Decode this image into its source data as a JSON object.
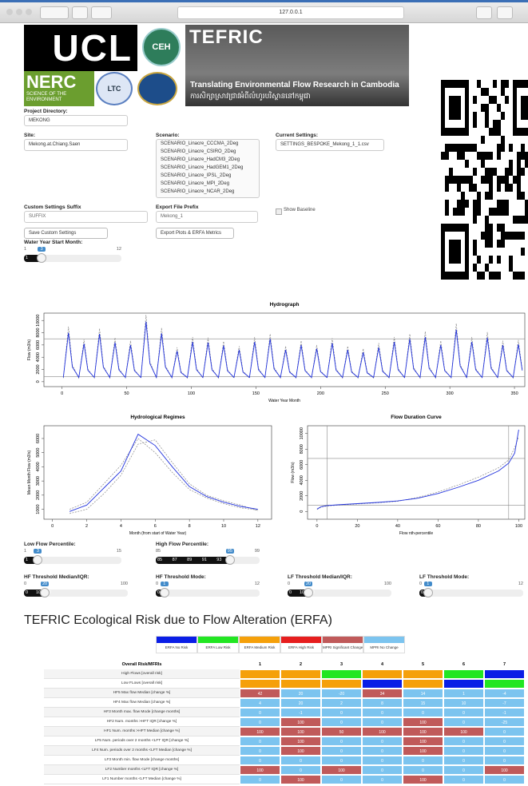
{
  "browser": {
    "url": "127.0.0.1"
  },
  "header": {
    "ucl": "UCL",
    "ceh": "CEH",
    "nerc": "NERC",
    "nerc_tagline": "SCIENCE OF THE ENVIRONMENT",
    "ltc": "LTC",
    "tefric": "TEFRIC",
    "tefric_tagline": "Translating Environmental Flow Research in Cambodia",
    "tefric_khmer": "ការសិក្សាស្រាវជ្រាវអំពីលំហូរបរិស្ថាននៅកម្ពុជា"
  },
  "form": {
    "project_label": "Project Directory:",
    "project": "MEKONG",
    "site_label": "Site:",
    "site": "Mekong.at.Chiang.Saen",
    "scenario_label": "Scenario:",
    "scenarios": [
      "SCENARIO_Linacre_CCCMA_2Deg",
      "SCENARIO_Linacre_CSIRO_2Deg",
      "SCENARIO_Linacre_HadCM3_2Deg",
      "SCENARIO_Linacre_HadGEM1_2Deg",
      "SCENARIO_Linacre_IPSL_2Deg",
      "SCENARIO_Linacre_MPI_2Deg",
      "SCENARIO_Linacre_NCAR_2Deg"
    ],
    "settings_label": "Current Settings:",
    "settings": "SETTINGS_BESPOKE_Mekong_1_1.csv",
    "suffix_label": "Custom Settings Suffix",
    "suffix": "SUFFIX",
    "prefix_label": "Export File Prefix",
    "prefix": "Mekong_1",
    "baseline": "Show Baseline",
    "save_button": "Save Custom Settings",
    "export_button": "Export Plots & ERFA Metrics"
  },
  "sliders": [
    {
      "label": "Water Year Start Month:",
      "min": 1,
      "max": 12,
      "value": 3,
      "grid": [
        1,
        3
      ]
    },
    {
      "label": "Low Flow Percentile:",
      "min": 1,
      "max": 15,
      "value": 3,
      "grid": [
        1,
        3
      ]
    },
    {
      "label": "High Flow Percentile:",
      "min": 85,
      "max": 99,
      "value": 95,
      "grid": [
        85,
        87,
        89,
        91,
        93
      ]
    },
    {
      "label": "HF Threshold Median/IQR:",
      "min": 0,
      "max": 100,
      "value": 20,
      "grid": [
        0,
        10,
        20
      ]
    },
    {
      "label": "HF Threshold Mode:",
      "min": 0,
      "max": 12,
      "value": 1,
      "grid": [
        0
      ]
    },
    {
      "label": "LF Threshold Median/IQR:",
      "min": 0,
      "max": 100,
      "value": 20,
      "grid": [
        0,
        10,
        20
      ]
    },
    {
      "label": "LF Threshold Mode:",
      "min": 0,
      "max": 12,
      "value": 1,
      "grid": [
        0
      ]
    }
  ],
  "chart_data": [
    {
      "type": "line",
      "title": "Hydrograph",
      "x_label": "Water Year Month",
      "y_label": "Flow (m3/s)",
      "xlim": [
        -14,
        358
      ],
      "ylim": [
        -800,
        11200
      ],
      "xticks": [
        0,
        50,
        100,
        150,
        200,
        250,
        300,
        350
      ],
      "yticks": [
        0,
        2000,
        4000,
        6000,
        8000,
        10000
      ],
      "hlines": [
        7000,
        800
      ],
      "x": [
        1,
        5,
        8,
        13,
        17,
        20,
        25,
        29,
        32,
        37,
        41,
        44,
        49,
        53,
        56,
        61,
        65,
        68,
        73,
        77,
        80,
        85,
        89,
        92,
        97,
        101,
        104,
        109,
        113,
        116,
        121,
        125,
        128,
        133,
        137,
        140,
        145,
        149,
        152,
        157,
        161,
        164,
        169,
        173,
        176,
        181,
        185,
        188,
        193,
        197,
        200,
        205,
        209,
        212,
        217,
        221,
        224,
        229,
        233,
        236,
        241,
        245,
        248,
        253,
        257,
        260,
        265,
        269,
        272,
        277,
        281,
        284,
        289,
        293,
        296,
        301,
        305,
        308,
        313,
        317,
        320,
        325,
        329,
        332,
        337,
        341,
        344,
        349,
        353,
        356
      ],
      "series": [
        {
          "color": "#888888",
          "dash": true,
          "values": [
            600,
            9000,
            2700,
            600,
            6900,
            2070,
            600,
            8700,
            2610,
            600,
            7200,
            2160,
            600,
            6700,
            2010,
            600,
            10900,
            3270,
            600,
            8800,
            2640,
            600,
            5600,
            1680,
            600,
            7300,
            2190,
            600,
            7200,
            2160,
            600,
            6600,
            1980,
            600,
            5800,
            1740,
            600,
            7300,
            2190,
            600,
            7800,
            2340,
            600,
            5800,
            1740,
            600,
            6700,
            2010,
            600,
            6000,
            1800,
            600,
            7100,
            2130,
            600,
            5800,
            1740,
            600,
            5400,
            1620,
            600,
            6300,
            1890,
            600,
            7300,
            2190,
            600,
            7800,
            2340,
            600,
            8200,
            2460,
            600,
            6700,
            2010,
            600,
            9500,
            2850,
            600,
            7300,
            2190,
            600,
            8100,
            2430,
            600,
            6700,
            2010,
            600,
            6800,
            2040
          ]
        },
        {
          "color": "#2233dd",
          "dash": false,
          "values": [
            700,
            8000,
            2400,
            700,
            6200,
            1860,
            700,
            7800,
            2340,
            700,
            6400,
            1920,
            700,
            6000,
            1800,
            700,
            9800,
            2940,
            700,
            7900,
            2370,
            700,
            5000,
            1500,
            700,
            6500,
            1950,
            700,
            6400,
            1920,
            700,
            5900,
            1770,
            700,
            5200,
            1560,
            700,
            6500,
            1950,
            700,
            7000,
            2100,
            700,
            5200,
            1560,
            700,
            6000,
            1800,
            700,
            5400,
            1620,
            700,
            6300,
            1890,
            700,
            5200,
            1560,
            700,
            4800,
            1440,
            700,
            5600,
            1680,
            700,
            6500,
            1950,
            700,
            7000,
            2100,
            700,
            7300,
            2190,
            700,
            6000,
            1800,
            700,
            8500,
            2550,
            700,
            6500,
            1950,
            700,
            7200,
            2160,
            700,
            6000,
            1800,
            700,
            6100,
            1830
          ]
        }
      ]
    },
    {
      "type": "line",
      "title": "Hydrological Regimes",
      "x_label": "Month (from start of Water Year)",
      "y_label": "Mean Month Flow (m3/s)",
      "xlim": [
        -0.5,
        12.8
      ],
      "ylim": [
        300,
        6900
      ],
      "xticks": [
        0,
        2,
        4,
        6,
        8,
        10,
        12
      ],
      "yticks": [
        1000,
        2000,
        3000,
        4000,
        5000,
        6000
      ],
      "x": [
        1,
        2,
        3,
        4,
        5,
        6,
        7,
        8,
        9,
        10,
        11,
        12
      ],
      "series": [
        {
          "color": "#888888",
          "dash": true,
          "values": [
            700,
            1000,
            2100,
            3400,
            5600,
            5900,
            4300,
            2800,
            2000,
            1600,
            1300,
            900
          ]
        },
        {
          "color": "#888888",
          "dash": true,
          "values": [
            1000,
            1500,
            2800,
            4100,
            6000,
            5000,
            3600,
            2400,
            1800,
            1400,
            1100,
            950
          ]
        },
        {
          "color": "#2233dd",
          "dash": false,
          "values": [
            850,
            1300,
            2500,
            3700,
            6300,
            5500,
            4000,
            2600,
            1900,
            1500,
            1200,
            1000
          ]
        }
      ]
    },
    {
      "type": "line",
      "title": "Flow Duration Curve",
      "x_label": "Flow nth-percentile",
      "y_label": "Flow (m3/s)",
      "xlim": [
        -4.7,
        103
      ],
      "ylim": [
        -1000,
        11000
      ],
      "xticks": [
        0,
        20,
        40,
        60,
        80,
        100
      ],
      "yticks": [
        0,
        2000,
        4000,
        6000,
        8000,
        10000
      ],
      "hlines": [
        6800,
        800
      ],
      "vlines": [
        5,
        95
      ],
      "x": [
        0,
        2,
        5,
        10,
        20,
        30,
        40,
        50,
        60,
        70,
        80,
        90,
        95,
        98,
        100
      ],
      "series": [
        {
          "color": "#888888",
          "dash": true,
          "values": [
            250,
            550,
            700,
            800,
            950,
            1100,
            1300,
            1800,
            2500,
            3400,
            4400,
            5600,
            6600,
            8200,
            9600
          ]
        },
        {
          "color": "#2233dd",
          "dash": false,
          "values": [
            300,
            600,
            750,
            850,
            1000,
            1150,
            1350,
            1700,
            2300,
            3100,
            4000,
            5200,
            6200,
            7500,
            10500
          ]
        }
      ]
    }
  ],
  "erfa": {
    "title": "TEFRIC Ecological Risk due to Flow Alteration (ERFA)",
    "legend": [
      {
        "label": "ERFA No Risk",
        "color": "#0a1ee6"
      },
      {
        "label": "ERFA Low Risk",
        "color": "#22e622"
      },
      {
        "label": "ERFA Medium Risk",
        "color": "#f5a00a"
      },
      {
        "label": "ERFA High Risk",
        "color": "#e61e1e"
      },
      {
        "label": "MPRI Significant Change",
        "color": "#c05a5a"
      },
      {
        "label": "MPRI No Change",
        "color": "#7cc4ef"
      }
    ],
    "header": "Overall Risk/MFRIs",
    "columns": [
      1,
      2,
      3,
      4,
      5,
      6,
      7
    ],
    "rows": [
      {
        "label": "High Flows [overall risk]",
        "levels": [
          2,
          2,
          1,
          2,
          2,
          1,
          0
        ]
      },
      {
        "label": "Low FLows [overall risk]",
        "levels": [
          2,
          2,
          2,
          0,
          2,
          0,
          1
        ]
      },
      {
        "label": "HF5 Max flow Median [change %]",
        "values": [
          42,
          20,
          -20,
          34,
          14,
          1,
          -4
        ],
        "levels": [
          4,
          5,
          5,
          4,
          5,
          5,
          5
        ]
      },
      {
        "label": "HF4 Max flow Median [change %]",
        "values": [
          4,
          20,
          2,
          8,
          15,
          10,
          -7
        ],
        "levels": [
          5,
          5,
          5,
          5,
          5,
          5,
          5
        ]
      },
      {
        "label": "HF3 Month max. flow Mode [change months]",
        "values": [
          0,
          -1,
          0,
          0,
          0,
          0,
          -1
        ],
        "levels": [
          5,
          5,
          5,
          5,
          5,
          5,
          5
        ]
      },
      {
        "label": "HF2 Num. months >HFT IQR [change %]",
        "values": [
          0,
          100,
          0,
          0,
          100,
          0,
          -25
        ],
        "levels": [
          5,
          4,
          5,
          5,
          4,
          5,
          5
        ]
      },
      {
        "label": "HF1 Num. months >HFT Median [change %]",
        "values": [
          100,
          100,
          50,
          100,
          100,
          100,
          0
        ],
        "levels": [
          4,
          4,
          4,
          4,
          4,
          4,
          5
        ]
      },
      {
        "label": "LF5 Num. periods over 2 months <LFT IQR [change %]",
        "values": [
          0,
          100,
          0,
          0,
          100,
          0,
          0
        ],
        "levels": [
          5,
          4,
          5,
          5,
          4,
          5,
          5
        ]
      },
      {
        "label": "LF4 Num. periods over 2 months <LFT Median [change %]",
        "values": [
          0,
          100,
          0,
          0,
          100,
          0,
          0
        ],
        "levels": [
          5,
          4,
          5,
          5,
          4,
          5,
          5
        ]
      },
      {
        "label": "LF3 Month min. flow Mode [change months]",
        "values": [
          0,
          0,
          0,
          0,
          0,
          0,
          0
        ],
        "levels": [
          5,
          5,
          5,
          5,
          5,
          5,
          5
        ]
      },
      {
        "label": "LF2 Number months <LFT IQR [change %]",
        "values": [
          100,
          0,
          100,
          0,
          0,
          0,
          100
        ],
        "levels": [
          4,
          5,
          4,
          5,
          5,
          5,
          4
        ]
      },
      {
        "label": "LF1 Number months <LFT Median [change %]",
        "values": [
          0,
          100,
          0,
          0,
          100,
          0,
          0
        ],
        "levels": [
          5,
          4,
          5,
          5,
          4,
          5,
          5
        ]
      }
    ]
  }
}
